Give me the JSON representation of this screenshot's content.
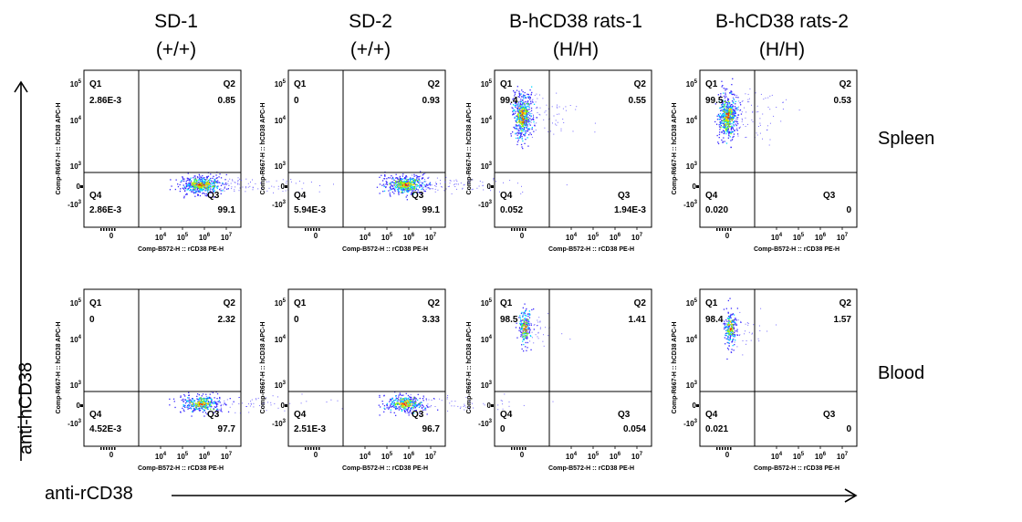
{
  "columns": [
    {
      "line1": "SD-1",
      "line2": "(+/+)"
    },
    {
      "line1": "SD-2",
      "line2": "(+/+)"
    },
    {
      "line1": "B-hCD38 rats-1",
      "line2": "(H/H)"
    },
    {
      "line1": "B-hCD38 rats-2",
      "line2": "(H/H)"
    }
  ],
  "rows": [
    "Spleen",
    "Blood"
  ],
  "axis_captions": {
    "y": "anti-hCD38",
    "x": "anti-rCD38"
  },
  "panel_axes": {
    "xlabel": "Comp-B572-H :: rCD38 PE-H",
    "ylabel": "Comp-R667-H :: hCD38 APC-H"
  },
  "chart_data": [
    {
      "type": "scatter",
      "tissue": "Spleen",
      "sample": "SD-1 (+/+)",
      "quadrants": {
        "Q1": "2.86E-3",
        "Q2": "0.85",
        "Q3": "99.1",
        "Q4": "2.86E-3"
      }
    },
    {
      "type": "scatter",
      "tissue": "Spleen",
      "sample": "SD-2 (+/+)",
      "quadrants": {
        "Q1": "0",
        "Q2": "0.93",
        "Q3": "99.1",
        "Q4": "5.94E-3"
      }
    },
    {
      "type": "scatter",
      "tissue": "Spleen",
      "sample": "B-hCD38 rats-1 (H/H)",
      "quadrants": {
        "Q1": "99.4",
        "Q2": "0.55",
        "Q3": "1.94E-3",
        "Q4": "0.052"
      }
    },
    {
      "type": "scatter",
      "tissue": "Spleen",
      "sample": "B-hCD38 rats-2 (H/H)",
      "quadrants": {
        "Q1": "99.5",
        "Q2": "0.53",
        "Q3": "0",
        "Q4": "0.020"
      }
    },
    {
      "type": "scatter",
      "tissue": "Blood",
      "sample": "SD-1 (+/+)",
      "quadrants": {
        "Q1": "0",
        "Q2": "2.32",
        "Q3": "97.7",
        "Q4": "4.52E-3"
      }
    },
    {
      "type": "scatter",
      "tissue": "Blood",
      "sample": "SD-2 (+/+)",
      "quadrants": {
        "Q1": "0",
        "Q2": "3.33",
        "Q3": "96.7",
        "Q4": "2.51E-3"
      }
    },
    {
      "type": "scatter",
      "tissue": "Blood",
      "sample": "B-hCD38 rats-1 (H/H)",
      "quadrants": {
        "Q1": "98.5",
        "Q2": "1.41",
        "Q3": "0.054",
        "Q4": "0"
      }
    },
    {
      "type": "scatter",
      "tissue": "Blood",
      "sample": "B-hCD38 rats-2 (H/H)",
      "quadrants": {
        "Q1": "98.4",
        "Q2": "1.57",
        "Q3": "0",
        "Q4": "0.021"
      }
    }
  ],
  "ticks": {
    "x": [
      {
        "base": "10",
        "exp": "4"
      },
      {
        "base": "10",
        "exp": "5"
      },
      {
        "base": "10",
        "exp": "6"
      },
      {
        "base": "10",
        "exp": "7"
      }
    ],
    "x_zero": "0",
    "y": [
      {
        "base": "10",
        "exp": "5"
      },
      {
        "base": "10",
        "exp": "4"
      },
      {
        "base": "10",
        "exp": "3"
      },
      {
        "base": "-10",
        "exp": "3"
      }
    ],
    "y_zero": "0"
  },
  "colors": {
    "low": "#3a2bff",
    "mid": "#00d8ff",
    "high1": "#7dff00",
    "high2": "#ffd400",
    "peak": "#ff2a00"
  }
}
